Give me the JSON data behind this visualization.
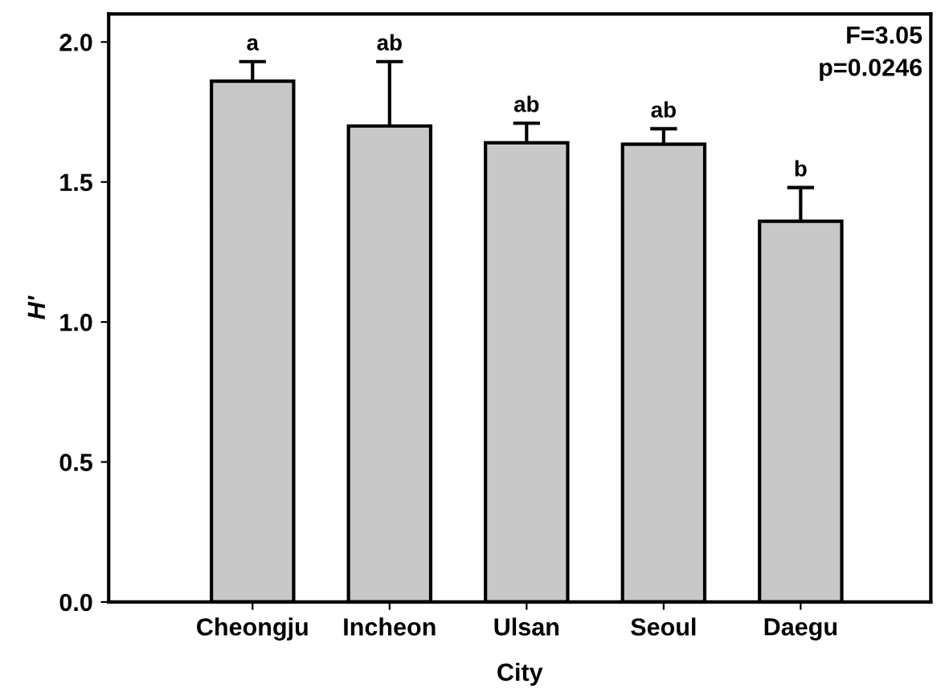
{
  "chart_data": {
    "type": "bar",
    "xlabel": "City",
    "ylabel": "H'",
    "categories": [
      "Cheongju",
      "Incheon",
      "Ulsan",
      "Seoul",
      "Daegu"
    ],
    "values": [
      1.86,
      1.7,
      1.64,
      1.635,
      1.36
    ],
    "errors": [
      0.07,
      0.23,
      0.07,
      0.055,
      0.12
    ],
    "color": "#c8c8c8",
    "ylim": [
      0,
      2.1
    ],
    "yticks": [
      {
        "value": 0,
        "label": "0.0"
      },
      0.5,
      {
        "value": 1,
        "label": "1.0"
      },
      1.5,
      {
        "value": 2,
        "label": "2.0"
      }
    ],
    "grid": false,
    "legend": false,
    "annotations": [
      "a",
      "ab",
      "ab",
      "ab",
      "b",
      "F=3.05",
      "p=0.0246"
    ]
  }
}
